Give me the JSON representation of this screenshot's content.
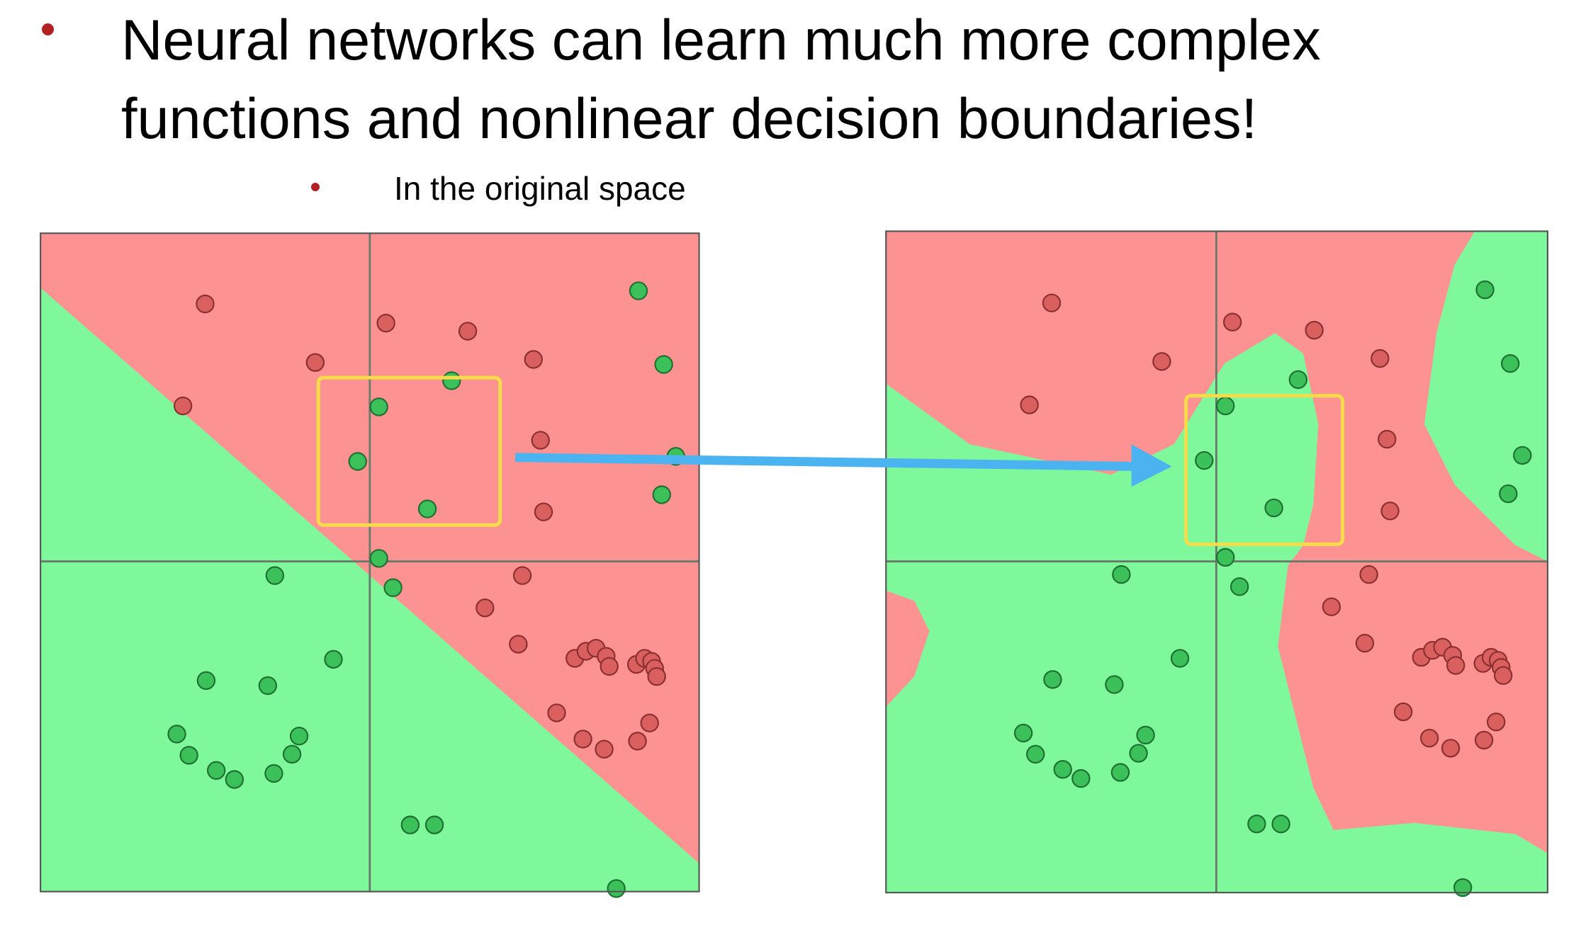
{
  "bullet": {
    "text": "Neural networks can learn much more complex functions and nonlinear decision boundaries!",
    "sub_bullet": "In the original space"
  }
}
